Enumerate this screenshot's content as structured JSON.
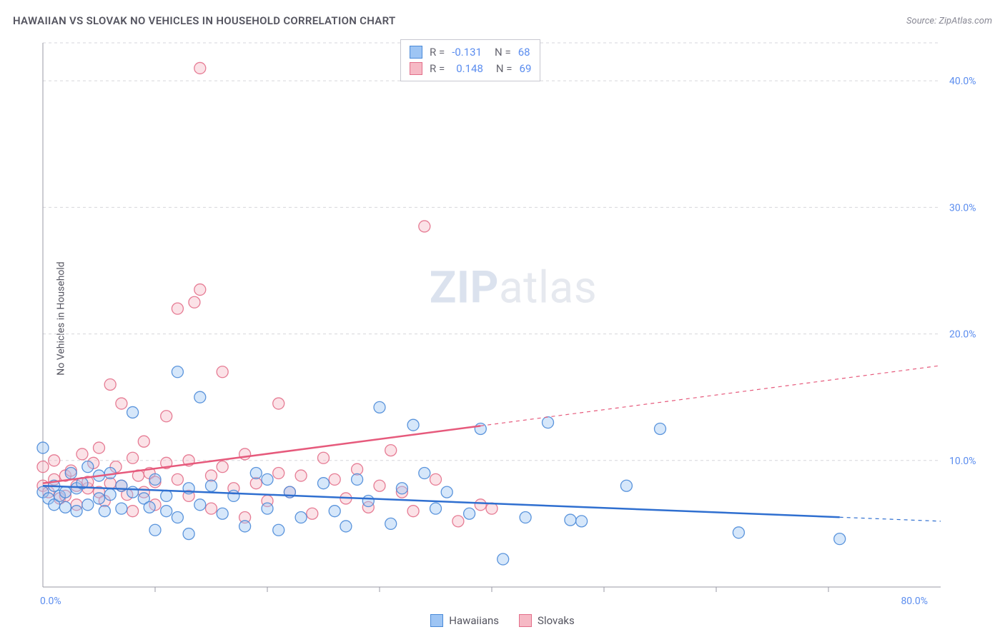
{
  "title": "HAWAIIAN VS SLOVAK NO VEHICLES IN HOUSEHOLD CORRELATION CHART",
  "source_prefix": "Source: ",
  "source_name": "ZipAtlas.com",
  "y_axis_label": "No Vehicles in Household",
  "watermark": {
    "bold": "ZIP",
    "rest": "atlas"
  },
  "chart": {
    "type": "scatter",
    "background_color": "#ffffff",
    "grid_color": "#d6d6db",
    "axis_color": "#9a9aa6",
    "tick_label_color": "#5b8def",
    "xlim": [
      0,
      80
    ],
    "ylim": [
      0,
      43
    ],
    "x_ticks_major": [
      0,
      80
    ],
    "x_ticks_minor": [
      10,
      20,
      30,
      40,
      50,
      60,
      70
    ],
    "y_ticks": [
      10,
      20,
      30,
      40
    ],
    "x_tick_labels": {
      "0": "0.0%",
      "80": "80.0%"
    },
    "y_tick_labels": {
      "10": "10.0%",
      "20": "20.0%",
      "30": "30.0%",
      "40": "40.0%"
    },
    "marker_radius": 8,
    "marker_opacity": 0.42,
    "marker_stroke_opacity": 0.9,
    "series": [
      {
        "name": "Hawaiians",
        "fill_color": "#9ec5f4",
        "stroke_color": "#4a8ad8",
        "trend_color": "#2f6fd0",
        "R": "-0.131",
        "N": "68",
        "trend": {
          "x1": 0,
          "y1": 8.0,
          "x2": 80,
          "y2": 5.2,
          "solid_until_x": 71
        },
        "points": [
          [
            0,
            7.5
          ],
          [
            0,
            11
          ],
          [
            0.5,
            7
          ],
          [
            1,
            6.5
          ],
          [
            1,
            8
          ],
          [
            1.5,
            7.2
          ],
          [
            2,
            7.5
          ],
          [
            2,
            6.3
          ],
          [
            2.5,
            9
          ],
          [
            3,
            6
          ],
          [
            3,
            7.8
          ],
          [
            3.5,
            8.2
          ],
          [
            4,
            6.5
          ],
          [
            4,
            9.5
          ],
          [
            5,
            7
          ],
          [
            5,
            8.8
          ],
          [
            5.5,
            6
          ],
          [
            6,
            7.3
          ],
          [
            6,
            9
          ],
          [
            7,
            6.2
          ],
          [
            7,
            8
          ],
          [
            8,
            7.5
          ],
          [
            8,
            13.8
          ],
          [
            9,
            7
          ],
          [
            9.5,
            6.3
          ],
          [
            10,
            8.5
          ],
          [
            10,
            4.5
          ],
          [
            11,
            6
          ],
          [
            11,
            7.2
          ],
          [
            12,
            17
          ],
          [
            12,
            5.5
          ],
          [
            13,
            7.8
          ],
          [
            13,
            4.2
          ],
          [
            14,
            15
          ],
          [
            14,
            6.5
          ],
          [
            15,
            8
          ],
          [
            16,
            5.8
          ],
          [
            17,
            7.2
          ],
          [
            18,
            4.8
          ],
          [
            19,
            9
          ],
          [
            20,
            6.2
          ],
          [
            20,
            8.5
          ],
          [
            21,
            4.5
          ],
          [
            22,
            7.5
          ],
          [
            23,
            5.5
          ],
          [
            25,
            8.2
          ],
          [
            26,
            6
          ],
          [
            27,
            4.8
          ],
          [
            28,
            8.5
          ],
          [
            29,
            6.8
          ],
          [
            30,
            14.2
          ],
          [
            31,
            5
          ],
          [
            32,
            7.8
          ],
          [
            33,
            12.8
          ],
          [
            34,
            9
          ],
          [
            35,
            6.2
          ],
          [
            36,
            7.5
          ],
          [
            38,
            5.8
          ],
          [
            39,
            12.5
          ],
          [
            41,
            2.2
          ],
          [
            43,
            5.5
          ],
          [
            45,
            13
          ],
          [
            47,
            5.3
          ],
          [
            48,
            5.2
          ],
          [
            52,
            8
          ],
          [
            55,
            12.5
          ],
          [
            62,
            4.3
          ],
          [
            71,
            3.8
          ]
        ]
      },
      {
        "name": "Slovaks",
        "fill_color": "#f6b9c5",
        "stroke_color": "#e36f8a",
        "trend_color": "#e65a7c",
        "R": "0.148",
        "N": "69",
        "trend": {
          "x1": 0,
          "y1": 8.2,
          "x2": 80,
          "y2": 17.5,
          "solid_until_x": 39
        },
        "points": [
          [
            0,
            8
          ],
          [
            0,
            9.5
          ],
          [
            0.5,
            7.5
          ],
          [
            1,
            8.5
          ],
          [
            1,
            10
          ],
          [
            1.5,
            7
          ],
          [
            2,
            8.8
          ],
          [
            2,
            7.2
          ],
          [
            2.5,
            9.2
          ],
          [
            3,
            8
          ],
          [
            3,
            6.5
          ],
          [
            3.5,
            10.5
          ],
          [
            4,
            7.8
          ],
          [
            4,
            8.3
          ],
          [
            4.5,
            9.8
          ],
          [
            5,
            7.5
          ],
          [
            5,
            11
          ],
          [
            5.5,
            6.8
          ],
          [
            6,
            8.2
          ],
          [
            6,
            16
          ],
          [
            6.5,
            9.5
          ],
          [
            7,
            8
          ],
          [
            7,
            14.5
          ],
          [
            7.5,
            7.3
          ],
          [
            8,
            10.2
          ],
          [
            8,
            6
          ],
          [
            8.5,
            8.8
          ],
          [
            9,
            7.5
          ],
          [
            9,
            11.5
          ],
          [
            9.5,
            9
          ],
          [
            10,
            8.3
          ],
          [
            10,
            6.5
          ],
          [
            11,
            13.5
          ],
          [
            11,
            9.8
          ],
          [
            12,
            8.5
          ],
          [
            12,
            22
          ],
          [
            13,
            7.2
          ],
          [
            13,
            10
          ],
          [
            13.5,
            22.5
          ],
          [
            14,
            41
          ],
          [
            14,
            23.5
          ],
          [
            15,
            8.8
          ],
          [
            15,
            6.2
          ],
          [
            16,
            9.5
          ],
          [
            16,
            17
          ],
          [
            17,
            7.8
          ],
          [
            18,
            10.5
          ],
          [
            18,
            5.5
          ],
          [
            19,
            8.2
          ],
          [
            20,
            6.8
          ],
          [
            21,
            9
          ],
          [
            21,
            14.5
          ],
          [
            22,
            7.5
          ],
          [
            23,
            8.8
          ],
          [
            24,
            5.8
          ],
          [
            25,
            10.2
          ],
          [
            26,
            8.5
          ],
          [
            27,
            7
          ],
          [
            28,
            9.3
          ],
          [
            29,
            6.3
          ],
          [
            30,
            8
          ],
          [
            31,
            10.8
          ],
          [
            32,
            7.5
          ],
          [
            33,
            6
          ],
          [
            34,
            28.5
          ],
          [
            35,
            8.5
          ],
          [
            37,
            5.2
          ],
          [
            39,
            6.5
          ],
          [
            40,
            6.2
          ]
        ]
      }
    ]
  },
  "correlation_box": {
    "R_label": "R =",
    "N_label": "N ="
  },
  "legend": {
    "series1": "Hawaiians",
    "series2": "Slovaks"
  }
}
